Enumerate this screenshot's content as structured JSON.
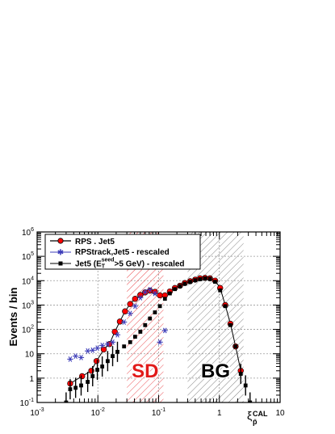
{
  "chart_data": {
    "type": "scatter",
    "title": "",
    "ylabel": "Events / bin",
    "xlabel_base": "ξ",
    "xlabel_sub": "p̄",
    "xlabel_sup": "CAL",
    "x_scale": "log",
    "y_scale": "log",
    "xlim": [
      0.001,
      10
    ],
    "ylim": [
      0.1,
      1000000
    ],
    "grid": true,
    "legend_position": "top-left",
    "x_tick_labels": [
      {
        "value": 0.001,
        "base": "10",
        "exp": "-3"
      },
      {
        "value": 0.01,
        "base": "10",
        "exp": "-2"
      },
      {
        "value": 0.1,
        "base": "10",
        "exp": "-1"
      },
      {
        "value": 1,
        "base": "1",
        "exp": ""
      },
      {
        "value": 10,
        "base": "10",
        "exp": ""
      }
    ],
    "y_tick_labels": [
      {
        "value": 0.1,
        "base": "10",
        "exp": "-1"
      },
      {
        "value": 1,
        "base": "1",
        "exp": ""
      },
      {
        "value": 10,
        "base": "10",
        "exp": ""
      },
      {
        "value": 100,
        "base": "10",
        "exp": "2"
      },
      {
        "value": 1000,
        "base": "10",
        "exp": "3"
      },
      {
        "value": 10000,
        "base": "10",
        "exp": "4"
      },
      {
        "value": 100000,
        "base": "10",
        "exp": "5"
      },
      {
        "value": 1000000,
        "base": "10",
        "exp": "6"
      }
    ],
    "regions": [
      {
        "label": "SD",
        "x_range": [
          0.03,
          0.12
        ],
        "color": "#e8383c",
        "text_color": "#e21a1a"
      },
      {
        "label": "BG",
        "x_range": [
          0.3,
          2.5
        ],
        "color": "#777777",
        "text_color": "#000000"
      }
    ],
    "series": [
      {
        "name": "RPS . Jet5",
        "marker": "circle",
        "color": "#ff0000",
        "edge_color": "#000000",
        "line": true,
        "points": [
          {
            "x": 0.0035,
            "y": 0.6
          },
          {
            "x": 0.0055,
            "y": 1.2
          },
          {
            "x": 0.0078,
            "y": 2.0
          },
          {
            "x": 0.0095,
            "y": 5.0
          },
          {
            "x": 0.0125,
            "y": 15
          },
          {
            "x": 0.0155,
            "y": 25
          },
          {
            "x": 0.019,
            "y": 80
          },
          {
            "x": 0.023,
            "y": 210
          },
          {
            "x": 0.028,
            "y": 550
          },
          {
            "x": 0.034,
            "y": 1100
          },
          {
            "x": 0.041,
            "y": 1800
          },
          {
            "x": 0.05,
            "y": 2600
          },
          {
            "x": 0.06,
            "y": 3300
          },
          {
            "x": 0.072,
            "y": 3900
          },
          {
            "x": 0.087,
            "y": 3500
          },
          {
            "x": 0.105,
            "y": 2500
          },
          {
            "x": 0.127,
            "y": 2500
          },
          {
            "x": 0.153,
            "y": 3600
          },
          {
            "x": 0.185,
            "y": 5000
          },
          {
            "x": 0.225,
            "y": 6200
          },
          {
            "x": 0.27,
            "y": 8000
          },
          {
            "x": 0.33,
            "y": 9500
          },
          {
            "x": 0.4,
            "y": 11000
          },
          {
            "x": 0.48,
            "y": 12500
          },
          {
            "x": 0.58,
            "y": 13000
          },
          {
            "x": 0.7,
            "y": 12500
          },
          {
            "x": 0.85,
            "y": 10000
          },
          {
            "x": 1.03,
            "y": 5000
          },
          {
            "x": 1.25,
            "y": 1000
          },
          {
            "x": 1.52,
            "y": 170
          },
          {
            "x": 1.85,
            "y": 20
          },
          {
            "x": 2.25,
            "y": 2.0
          }
        ]
      },
      {
        "name": "RPStrack,Jet5 - rescaled",
        "marker": "star",
        "color": "#3b3bb8",
        "edge_color": "#3b3bb8",
        "line": false,
        "points": [
          {
            "x": 0.0035,
            "y": 6
          },
          {
            "x": 0.0043,
            "y": 8
          },
          {
            "x": 0.0053,
            "y": 7
          },
          {
            "x": 0.0068,
            "y": 13
          },
          {
            "x": 0.0082,
            "y": 14
          },
          {
            "x": 0.0098,
            "y": 17
          },
          {
            "x": 0.0118,
            "y": 22
          },
          {
            "x": 0.0145,
            "y": 25
          },
          {
            "x": 0.0175,
            "y": 30
          },
          {
            "x": 0.021,
            "y": 60
          },
          {
            "x": 0.027,
            "y": 200
          },
          {
            "x": 0.034,
            "y": 450
          },
          {
            "x": 0.041,
            "y": 900
          },
          {
            "x": 0.05,
            "y": 2000
          },
          {
            "x": 0.06,
            "y": 3400
          },
          {
            "x": 0.072,
            "y": 4300
          },
          {
            "x": 0.087,
            "y": 3000
          },
          {
            "x": 0.105,
            "y": 30
          },
          {
            "x": 0.127,
            "y": 90
          }
        ]
      },
      {
        "name": "Jet5 (E_T^seed>5 GeV) - rescaled",
        "legend_main": "Jet5 (E",
        "legend_sub": "T",
        "legend_sup": "seed",
        "legend_tail": ">5 GeV) - rescaled",
        "marker": "square",
        "color": "#000000",
        "edge_color": "#000000",
        "line": false,
        "points": [
          {
            "x": 0.003,
            "y": 0.1
          },
          {
            "x": 0.0035,
            "y": 0.35
          },
          {
            "x": 0.0043,
            "y": 0.4
          },
          {
            "x": 0.0053,
            "y": 0.5
          },
          {
            "x": 0.0068,
            "y": 0.7
          },
          {
            "x": 0.0082,
            "y": 1.2
          },
          {
            "x": 0.0098,
            "y": 2.2
          },
          {
            "x": 0.0118,
            "y": 3.0
          },
          {
            "x": 0.0145,
            "y": 5.0
          },
          {
            "x": 0.0175,
            "y": 8.0
          },
          {
            "x": 0.021,
            "y": 12
          },
          {
            "x": 0.027,
            "y": 20
          },
          {
            "x": 0.034,
            "y": 30
          },
          {
            "x": 0.041,
            "y": 50
          },
          {
            "x": 0.05,
            "y": 80
          },
          {
            "x": 0.06,
            "y": 150
          },
          {
            "x": 0.072,
            "y": 280
          },
          {
            "x": 0.087,
            "y": 500
          },
          {
            "x": 0.105,
            "y": 900
          },
          {
            "x": 0.127,
            "y": 1800
          },
          {
            "x": 0.153,
            "y": 3000
          },
          {
            "x": 0.185,
            "y": 4500
          },
          {
            "x": 0.225,
            "y": 6000
          },
          {
            "x": 0.27,
            "y": 7500
          },
          {
            "x": 0.33,
            "y": 9000
          },
          {
            "x": 0.4,
            "y": 10500
          },
          {
            "x": 0.48,
            "y": 11500
          },
          {
            "x": 0.58,
            "y": 12500
          },
          {
            "x": 0.7,
            "y": 12000
          },
          {
            "x": 0.85,
            "y": 9000
          },
          {
            "x": 1.03,
            "y": 4000
          },
          {
            "x": 1.25,
            "y": 900
          },
          {
            "x": 1.52,
            "y": 150
          },
          {
            "x": 1.85,
            "y": 20
          },
          {
            "x": 2.25,
            "y": 1.5
          },
          {
            "x": 2.7,
            "y": 0.5
          },
          {
            "x": 3.2,
            "y": 0.1
          }
        ]
      }
    ]
  }
}
